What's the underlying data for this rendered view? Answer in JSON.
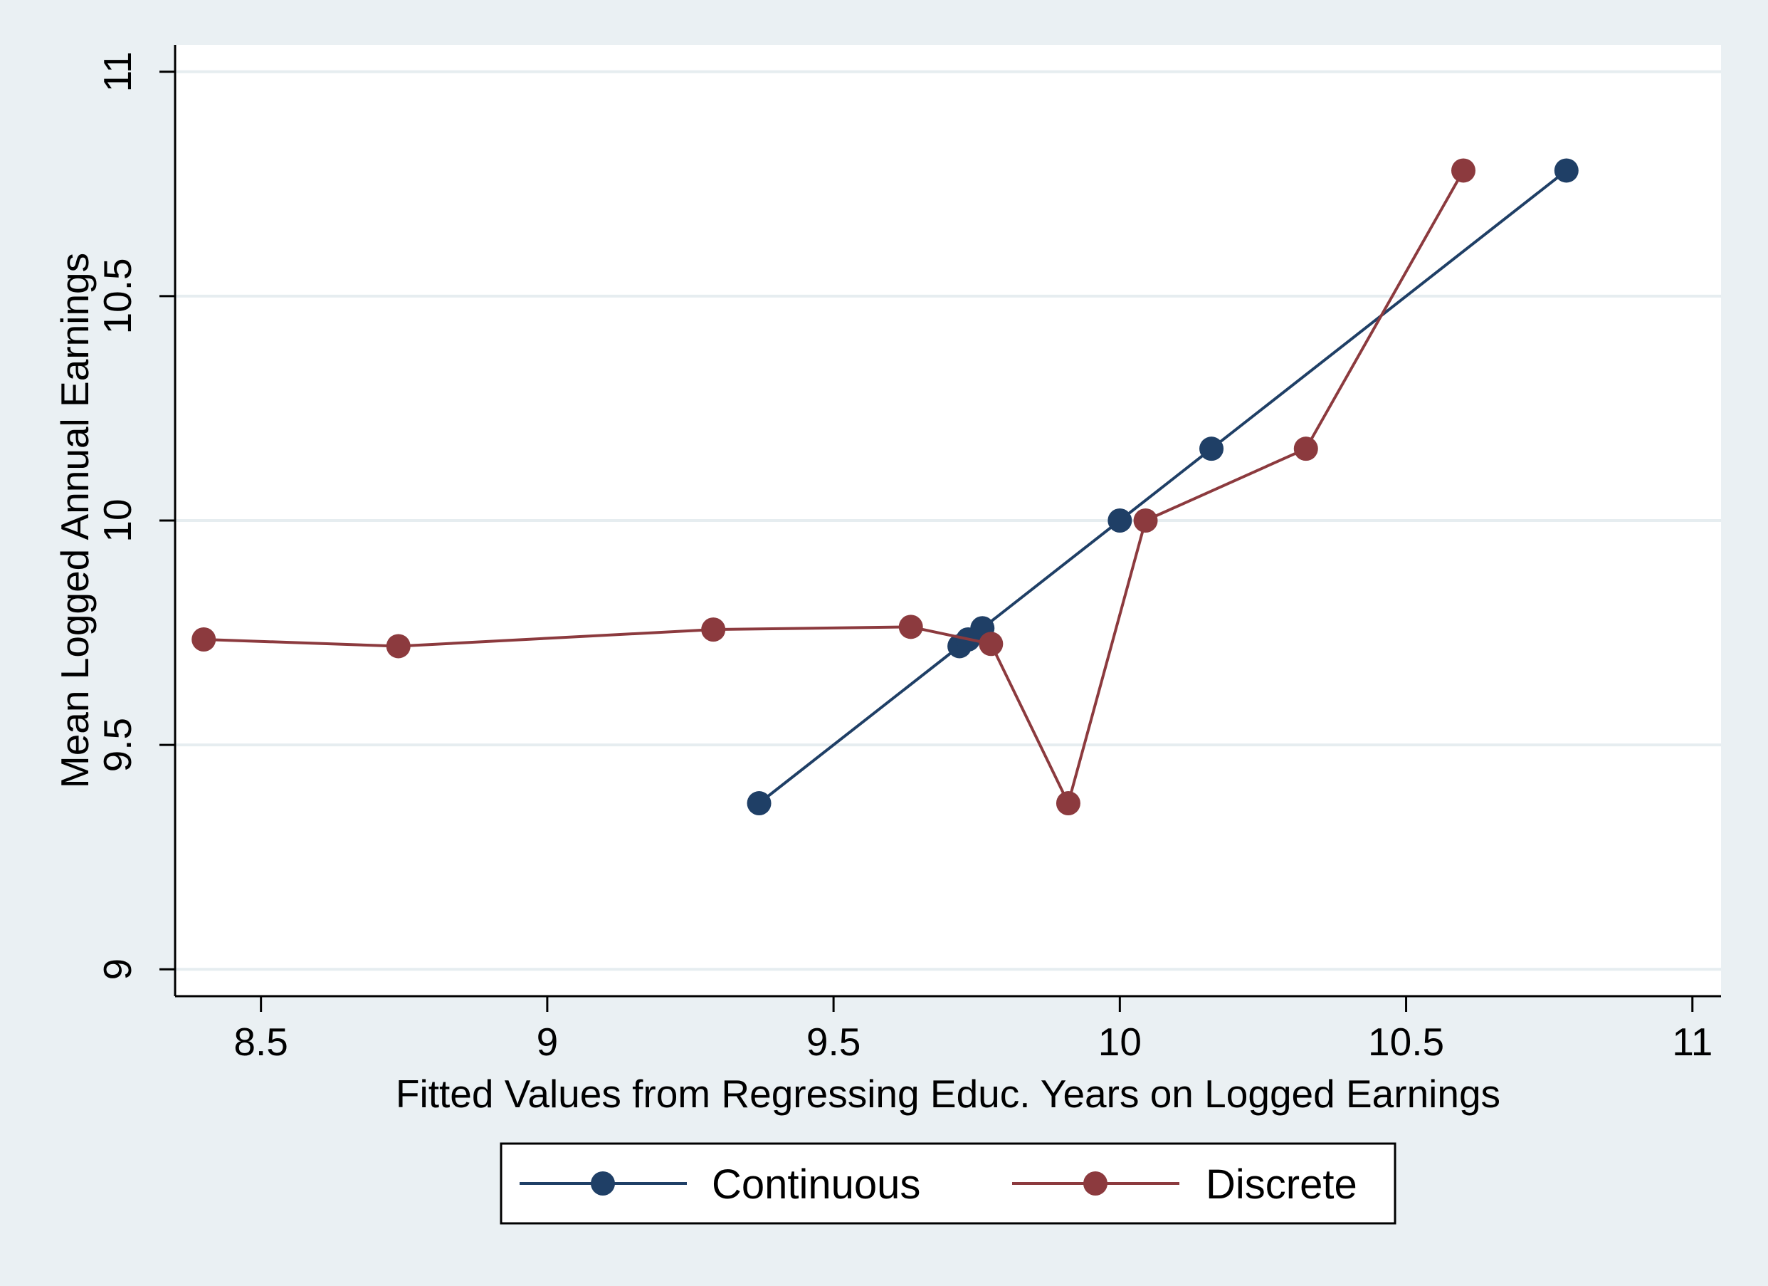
{
  "chart_data": {
    "type": "line",
    "title": "",
    "xlabel": "Fitted Values from Regressing Educ. Years on Logged Earnings",
    "ylabel": "Mean Logged Annual Earnings",
    "xlim": [
      8.35,
      11.05
    ],
    "ylim": [
      8.94,
      11.06
    ],
    "xticks": [
      8.5,
      9,
      9.5,
      10,
      10.5,
      11
    ],
    "xtick_labels": [
      "8.5",
      "9",
      "9.5",
      "10",
      "10.5",
      "11"
    ],
    "yticks": [
      9,
      9.5,
      10,
      10.5,
      11
    ],
    "ytick_labels": [
      "9",
      "9.5",
      "10",
      "10.5",
      "11"
    ],
    "grid": "horizontal",
    "legend_position": "bottom",
    "series": [
      {
        "name": "Continuous",
        "color": "#1f3f66",
        "points": [
          {
            "x": 9.37,
            "y": 9.37
          },
          {
            "x": 9.72,
            "y": 9.72
          },
          {
            "x": 9.735,
            "y": 9.735
          },
          {
            "x": 9.76,
            "y": 9.76
          },
          {
            "x": 10.0,
            "y": 10.0
          },
          {
            "x": 10.16,
            "y": 10.16
          },
          {
            "x": 10.78,
            "y": 10.78
          }
        ]
      },
      {
        "name": "Discrete",
        "color": "#8c3a3e",
        "points": [
          {
            "x": 8.4,
            "y": 9.735
          },
          {
            "x": 8.74,
            "y": 9.72
          },
          {
            "x": 9.29,
            "y": 9.757
          },
          {
            "x": 9.635,
            "y": 9.763
          },
          {
            "x": 9.775,
            "y": 9.725
          },
          {
            "x": 9.91,
            "y": 9.37
          },
          {
            "x": 10.045,
            "y": 10.0
          },
          {
            "x": 10.325,
            "y": 10.16
          },
          {
            "x": 10.6,
            "y": 10.78
          }
        ]
      }
    ]
  }
}
